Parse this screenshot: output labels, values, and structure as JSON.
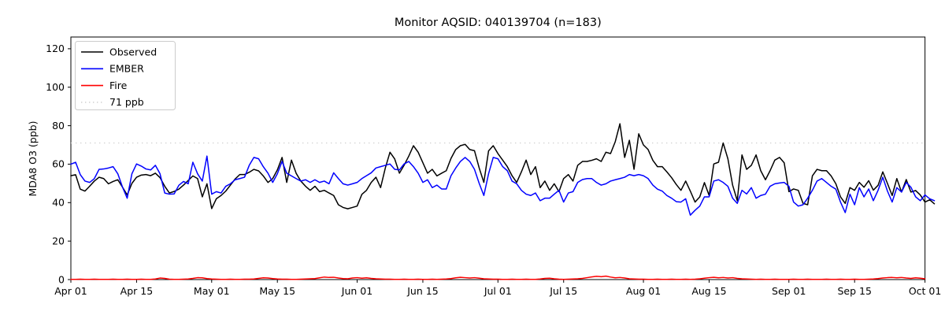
{
  "chart_data": {
    "type": "line",
    "title": "Monitor AQSID: 040139704 (n=183)",
    "xlabel": "",
    "ylabel": "MDA8 O3 (ppb)",
    "ylim": [
      0,
      126.1
    ],
    "yticks": [
      0,
      20,
      40,
      60,
      80,
      100,
      120
    ],
    "xtick_labels": [
      "Apr 01",
      "Apr 15",
      "May 01",
      "May 15",
      "Jun 01",
      "Jun 15",
      "Jul 01",
      "Jul 15",
      "Aug 01",
      "Aug 15",
      "Sep 01",
      "Sep 15",
      "Oct 01"
    ],
    "xtick_days": [
      0,
      14,
      30,
      44,
      61,
      75,
      91,
      105,
      122,
      136,
      153,
      167,
      182
    ],
    "n_days": 183,
    "grid": false,
    "legend_position": "upper-left",
    "legend": [
      {
        "label": "Observed",
        "color": "#000000",
        "style": "solid"
      },
      {
        "label": "EMBER",
        "color": "#0000ff",
        "style": "solid"
      },
      {
        "label": "Fire",
        "color": "#ff0000",
        "style": "solid"
      },
      {
        "label": "71 ppb",
        "color": "#d3d3d3",
        "style": "dotted"
      }
    ],
    "threshold": {
      "value": 71,
      "label": "71 ppb",
      "color": "#d3d3d3",
      "style": "dotted"
    },
    "series": [
      {
        "name": "Observed",
        "color": "#000000",
        "values": [
          54,
          54.5,
          47,
          46,
          48.5,
          51.2,
          53.2,
          52.5,
          49.8,
          51,
          51.9,
          48,
          44,
          50,
          53.2,
          54.3,
          54.6,
          54,
          55.3,
          53,
          48.5,
          45,
          45.8,
          47,
          49.1,
          51.5,
          53.9,
          52.5,
          43,
          49.8,
          36.9,
          42,
          43.7,
          46,
          49.1,
          52.3,
          54.6,
          54.6,
          55.8,
          57.3,
          56.5,
          53.9,
          50.5,
          52.5,
          57,
          63.5,
          50.5,
          62.1,
          55.3,
          51.2,
          48.5,
          46.4,
          48.5,
          45.7,
          46.4,
          45,
          43.7,
          38.9,
          37.5,
          36.8,
          37.5,
          38.2,
          44.3,
          46.4,
          50.5,
          53.2,
          47.8,
          58,
          66.2,
          62.7,
          55.3,
          59.4,
          64.2,
          69.6,
          66.2,
          60.7,
          55.3,
          57.3,
          53.9,
          55.3,
          56.6,
          63,
          67.6,
          69.6,
          70.3,
          67.6,
          67,
          58,
          50.5,
          66.9,
          69.6,
          65.5,
          62.1,
          58.7,
          54,
          50.5,
          56,
          62.1,
          54.6,
          58.7,
          47.8,
          51.2,
          46.4,
          49.8,
          45.7,
          52.5,
          54.6,
          51.2,
          59.4,
          61.4,
          61.4,
          62,
          62.8,
          61.4,
          66.2,
          65.5,
          71.7,
          81,
          63.5,
          72.4,
          57.3,
          75.8,
          70,
          67.6,
          62,
          58.7,
          58.7,
          56,
          53,
          49.4,
          46.4,
          51.2,
          46,
          40.3,
          43,
          50.4,
          43.7,
          60.1,
          61,
          71,
          62.8,
          49.1,
          41,
          64.8,
          57.3,
          59.4,
          64.8,
          56.6,
          51.9,
          56.6,
          62.1,
          63.5,
          60.7,
          45.7,
          47.1,
          46.4,
          39.6,
          38.9,
          53.9,
          57.3,
          56.6,
          56.6,
          53.9,
          49.8,
          43,
          39.6,
          47.8,
          46.4,
          50.5,
          48,
          51.4,
          46.5,
          49,
          56,
          50,
          43.7,
          52.5,
          45.5,
          52,
          45.5,
          46.3,
          44,
          40.3,
          41.5,
          39.4
        ]
      },
      {
        "name": "EMBER",
        "color": "#0000ff",
        "values": [
          60,
          61,
          54.6,
          51.2,
          50.5,
          52.5,
          57.3,
          57.5,
          58,
          58.7,
          55,
          48,
          42.3,
          55,
          60.1,
          59,
          57.5,
          57,
          59.4,
          55,
          45,
          44.4,
          44.5,
          49,
          51,
          49.8,
          61,
          55,
          51.2,
          64.2,
          44.4,
          45.7,
          45,
          48.5,
          49.8,
          51.9,
          52.5,
          53.2,
          59.4,
          63.5,
          62.8,
          58.7,
          55.3,
          50.5,
          55,
          61.4,
          55.3,
          53.9,
          52.5,
          51.2,
          51.9,
          50.5,
          51.9,
          50.5,
          51.2,
          49.8,
          55.5,
          52.5,
          49.8,
          49.1,
          49.8,
          50.5,
          52.5,
          54,
          55.5,
          58,
          58.7,
          59.4,
          60.1,
          57.3,
          57,
          60.1,
          61.4,
          58.7,
          55.3,
          50.5,
          51.9,
          47.8,
          49.1,
          47.1,
          47.1,
          54,
          58,
          61.4,
          63.5,
          61.4,
          57.3,
          50,
          43.7,
          55,
          63.5,
          62.8,
          58.7,
          56.6,
          51.2,
          49.8,
          46.4,
          44.4,
          43.7,
          45,
          41,
          42.3,
          42.3,
          44.4,
          46.4,
          40.3,
          45,
          45.7,
          50.5,
          52,
          52.5,
          52.5,
          50.5,
          49.1,
          49.8,
          51.2,
          51.9,
          52.5,
          53.2,
          54.6,
          54,
          54.6,
          54,
          52.5,
          49.1,
          47,
          46,
          43.7,
          42.3,
          40.5,
          40.3,
          42,
          33.5,
          36,
          38.2,
          43,
          43,
          51.2,
          51.9,
          50.5,
          48.5,
          42.3,
          39.6,
          46.4,
          44.5,
          47.8,
          42.3,
          43.7,
          44.4,
          48.5,
          49.8,
          50.2,
          50.5,
          48.5,
          40.3,
          38.2,
          38.9,
          42.3,
          46.4,
          51.2,
          52.5,
          50.5,
          48.5,
          47,
          40.3,
          34.8,
          44.4,
          38.9,
          47.8,
          43,
          47.1,
          41,
          46.4,
          53.2,
          46,
          40.3,
          47.8,
          45.5,
          50.5,
          48,
          43,
          41,
          44,
          42,
          41
        ]
      },
      {
        "name": "Fire",
        "color": "#ff0000",
        "values": [
          0.1,
          0.1,
          0.2,
          0.1,
          0.1,
          0.2,
          0.1,
          0.1,
          0.1,
          0.2,
          0.1,
          0.1,
          0.2,
          0.1,
          0.1,
          0.2,
          0.1,
          0.1,
          0.3,
          0.8,
          0.6,
          0.2,
          0.1,
          0.1,
          0.2,
          0.3,
          0.6,
          1.0,
          0.9,
          0.5,
          0.3,
          0.2,
          0.1,
          0.1,
          0.2,
          0.1,
          0.1,
          0.2,
          0.2,
          0.3,
          0.6,
          0.9,
          0.8,
          0.5,
          0.3,
          0.2,
          0.2,
          0.1,
          0.1,
          0.2,
          0.3,
          0.4,
          0.5,
          0.9,
          1.3,
          1.1,
          1.2,
          0.8,
          0.5,
          0.4,
          0.8,
          1.0,
          0.7,
          0.9,
          0.6,
          0.4,
          0.3,
          0.2,
          0.2,
          0.1,
          0.1,
          0.2,
          0.1,
          0.1,
          0.2,
          0.1,
          0.1,
          0.2,
          0.1,
          0.2,
          0.3,
          0.5,
          0.9,
          1.2,
          1.0,
          0.8,
          1.0,
          0.7,
          0.4,
          0.3,
          0.2,
          0.2,
          0.1,
          0.1,
          0.2,
          0.1,
          0.1,
          0.2,
          0.1,
          0.1,
          0.3,
          0.6,
          0.7,
          0.4,
          0.2,
          0.1,
          0.2,
          0.3,
          0.4,
          0.6,
          1.0,
          1.4,
          1.7,
          1.5,
          1.8,
          1.3,
          0.9,
          1.1,
          0.8,
          0.4,
          0.3,
          0.2,
          0.2,
          0.1,
          0.1,
          0.2,
          0.1,
          0.1,
          0.2,
          0.1,
          0.1,
          0.2,
          0.1,
          0.2,
          0.4,
          0.7,
          1.0,
          1.2,
          0.9,
          1.1,
          0.8,
          1.0,
          0.6,
          0.4,
          0.3,
          0.2,
          0.1,
          0.2,
          0.1,
          0.1,
          0.2,
          0.1,
          0.1,
          0.1,
          0.2,
          0.1,
          0.1,
          0.2,
          0.1,
          0.1,
          0.1,
          0.2,
          0.1,
          0.1,
          0.2,
          0.1,
          0.1,
          0.2,
          0.1,
          0.1,
          0.2,
          0.3,
          0.5,
          0.8,
          1.0,
          1.1,
          0.9,
          1.1,
          0.8,
          0.6,
          0.9,
          0.7,
          0.4
        ]
      }
    ]
  }
}
